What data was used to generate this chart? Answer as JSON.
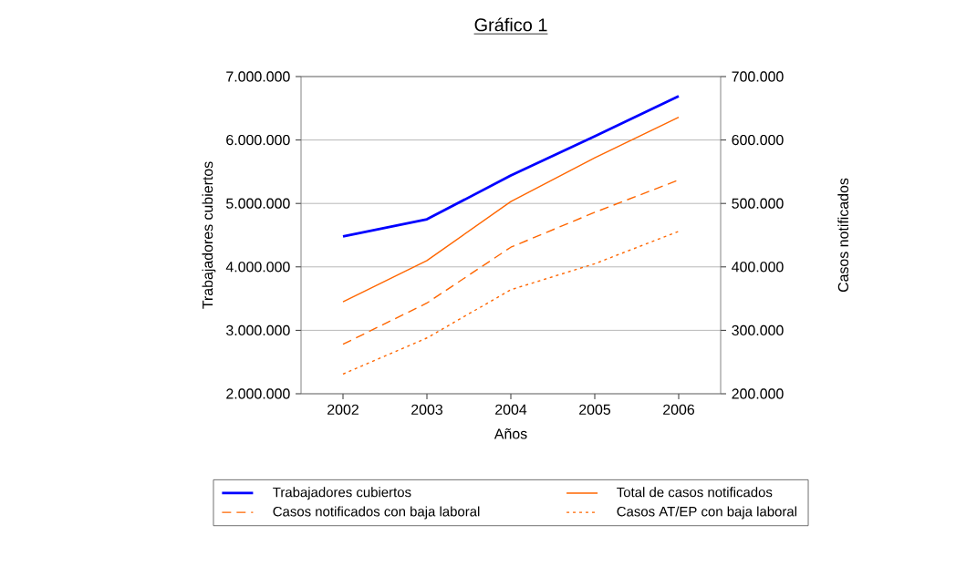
{
  "chart_data": {
    "type": "line",
    "title": "Gráfico 1",
    "xlabel": "Años",
    "ylabel": "Trabajadores cubiertos",
    "y2label": "Casos notificados",
    "categories": [
      "2002",
      "2003",
      "2004",
      "2005",
      "2006"
    ],
    "series": [
      {
        "name": "Trabajadores cubiertos",
        "color": "#0000ff",
        "values": [
          4480000,
          4750000,
          5440000,
          6060000,
          6690000
        ],
        "line_style": "solid"
      },
      {
        "name": "Total de casos notificados",
        "color": "#ff6600",
        "values": [
          345000,
          410000,
          503000,
          572000,
          636000
        ],
        "axis": "y2",
        "line_style": "solid"
      },
      {
        "name": "Casos notificados con baja laboral",
        "color": "#ff6600",
        "values": [
          278000,
          343000,
          431000,
          486000,
          537000
        ],
        "axis": "y2",
        "line_style": "dashed"
      },
      {
        "name": "Casos AT/EP con baja laboral",
        "color": "#ff6600",
        "values": [
          231000,
          288000,
          364000,
          405000,
          456000
        ],
        "axis": "y2",
        "line_style": "dotted"
      }
    ],
    "ylim": [
      2000000,
      7000000
    ],
    "yticks": [
      {
        "value": 2000000,
        "label": "2.000.000"
      },
      {
        "value": 3000000,
        "label": "3.000.000"
      },
      {
        "value": 4000000,
        "label": "4.000.000"
      },
      {
        "value": 5000000,
        "label": "5.000.000"
      },
      {
        "value": 6000000,
        "label": "6.000.000"
      },
      {
        "value": 7000000,
        "label": "7.000.000"
      }
    ],
    "y2lim": [
      200000,
      700000
    ],
    "y2ticks": [
      {
        "value": 200000,
        "label": "200.000"
      },
      {
        "value": 300000,
        "label": "300.000"
      },
      {
        "value": 400000,
        "label": "400.000"
      },
      {
        "value": 500000,
        "label": "500.000"
      },
      {
        "value": 600000,
        "label": "600.000"
      },
      {
        "value": 700000,
        "label": "700.000"
      }
    ],
    "grid": "y",
    "legend": "bottom",
    "marker": "none"
  }
}
